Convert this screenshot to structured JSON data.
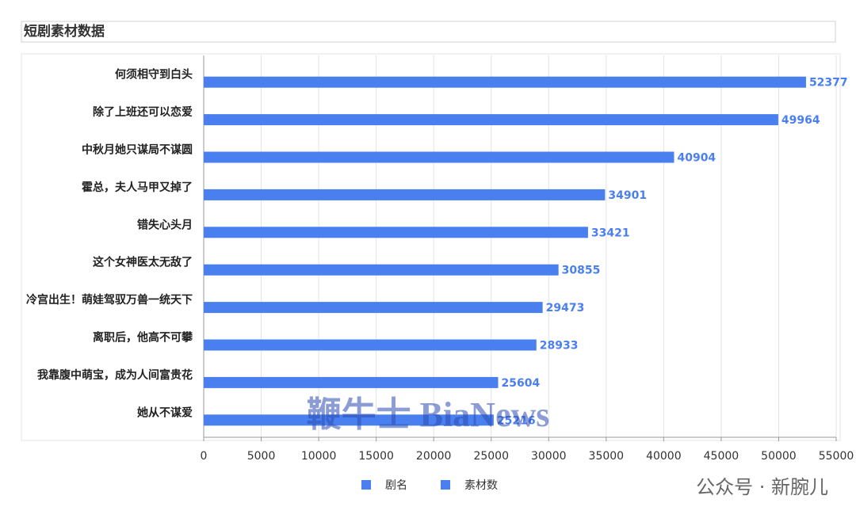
{
  "chart_data": {
    "type": "hbar",
    "title": "短剧素材数据",
    "categories": [
      "何须相守到白头",
      "除了上班还可以恋爱",
      "中秋月她只谋局不谋圆",
      "霍总，夫人马甲又掉了",
      "错失心头月",
      "这个女神医太无敌了",
      "冷宫出生！萌娃驾驭万兽一统天下",
      "离职后，他高不可攀",
      "我靠腹中萌宝，成为人间富贵花",
      "她从不谋爱"
    ],
    "category_label": "剧名",
    "series": [
      {
        "name": "素材数",
        "color": "#4a7ff0",
        "values": [
          52377,
          49964,
          40904,
          34901,
          33421,
          30855,
          29473,
          28933,
          25604,
          25216
        ]
      }
    ],
    "xlim": [
      0,
      55000
    ],
    "xticks": [
      0,
      5000,
      10000,
      15000,
      20000,
      25000,
      30000,
      35000,
      40000,
      45000,
      50000,
      55000
    ],
    "grid": true
  },
  "watermark": "鞭牛士 BiaNews",
  "footer_credit": "公众号 · 新腕儿"
}
